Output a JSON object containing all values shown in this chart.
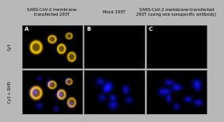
{
  "col_titles": [
    "SARS-CoV-2 membrane-\ntransfected 293T",
    "Mock 293T",
    "SARS-CoV-2 membrane-transfected\n293T (using one nonspecific antibody)"
  ],
  "row_labels": [
    "Cy3",
    "Cy3 + DAPI"
  ],
  "panel_labels": [
    "A",
    "B",
    "C"
  ],
  "background_color": "#000000",
  "outer_bg": "#b8b8b8",
  "col_title_fontsize": 3.8,
  "row_label_fontsize": 3.5,
  "panel_label_fontsize": 5.0,
  "panel_label_color": "#ffffff",
  "col_title_color": "#000000",
  "row_label_color": "#000000"
}
